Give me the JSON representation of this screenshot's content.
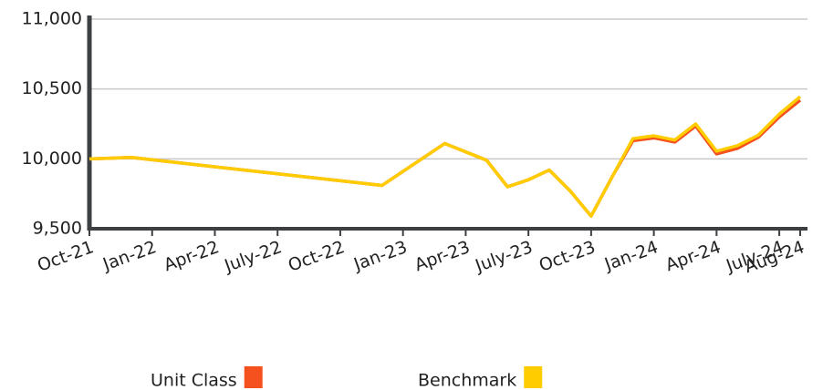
{
  "chart_data": {
    "type": "line",
    "x": [
      "Oct-21",
      "Dec-21",
      "Dec-22",
      "Mar-23",
      "May-23",
      "Jun-23",
      "Jul-23",
      "Aug-23",
      "Sep-23",
      "Oct-23",
      "Nov-23",
      "Dec-23",
      "Jan-24",
      "Feb-24",
      "Mar-24",
      "Apr-24",
      "May-24",
      "Jun-24",
      "Jul-24",
      "Aug-24"
    ],
    "series": [
      {
        "name": "Unit Class",
        "color": "#f4511e",
        "values": [
          10000,
          10010,
          9810,
          10110,
          9990,
          9800,
          9850,
          9920,
          9770,
          9590,
          9870,
          10130,
          10150,
          10120,
          10235,
          10035,
          10075,
          10155,
          10300,
          10420
        ]
      },
      {
        "name": "Benchmark",
        "color": "#ffcc00",
        "values": [
          10000,
          10010,
          9810,
          10110,
          9990,
          9800,
          9850,
          9920,
          9770,
          9590,
          9870,
          10145,
          10165,
          10135,
          10250,
          10055,
          10095,
          10170,
          10320,
          10445
        ]
      }
    ],
    "ylim": [
      9500,
      11000
    ],
    "yticks": [
      {
        "value": 9500,
        "label": "9,500"
      },
      {
        "value": 10000,
        "label": "10,000"
      },
      {
        "value": 10500,
        "label": "10,500"
      },
      {
        "value": 11000,
        "label": "11,000"
      }
    ],
    "xticks": [
      "Oct-21",
      "Jan-22",
      "Apr-22",
      "July-22",
      "Oct-22",
      "Jan-23",
      "Apr-23",
      "July-23",
      "Oct-23",
      "Jan-24",
      "Apr-24",
      "July-24",
      "Aug-24"
    ],
    "grid": true,
    "legend": "bottom"
  }
}
